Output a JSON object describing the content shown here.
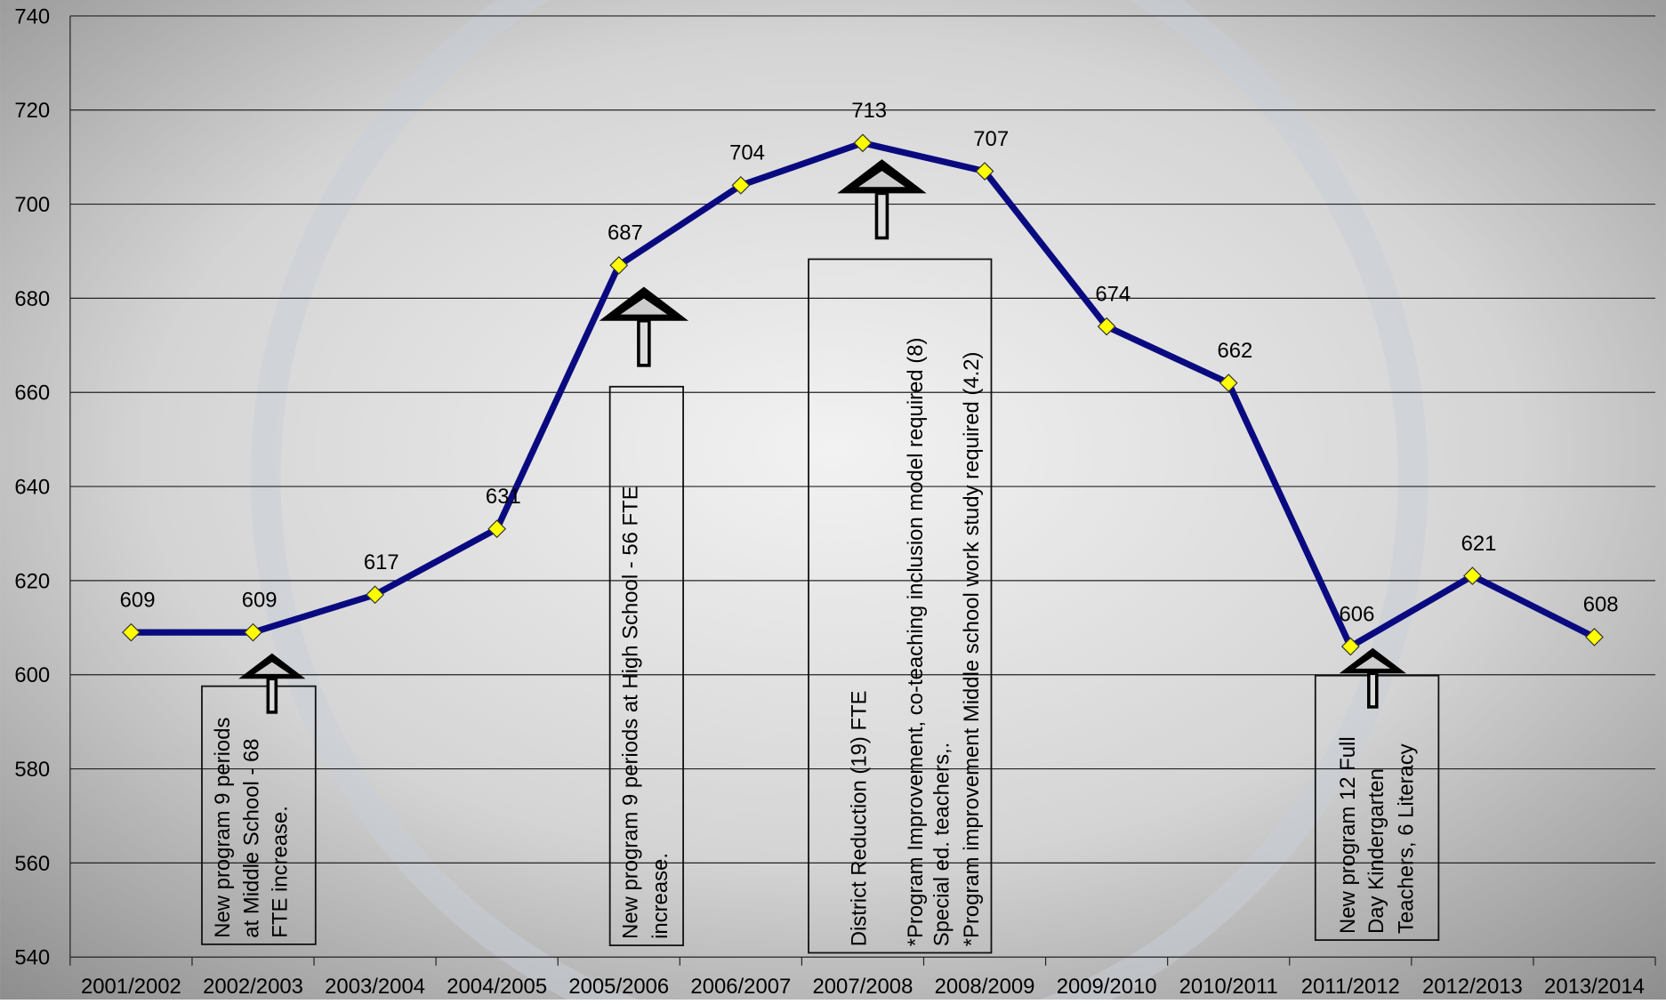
{
  "chart_data": {
    "type": "line",
    "categories": [
      "2001/2002",
      "2002/2003",
      "2003/2004",
      "2004/2005",
      "2005/2006",
      "2006/2007",
      "2007/2008",
      "2008/2009",
      "2009/2010",
      "2010/2011",
      "2011/2012",
      "2012/2013",
      "2013/2014"
    ],
    "series": [
      {
        "name": "FTE",
        "color": "#0a0a80",
        "values": [
          609,
          609,
          617,
          631,
          687,
          704,
          713,
          707,
          674,
          662,
          606,
          621,
          608
        ]
      }
    ],
    "ylim": [
      540,
      740
    ],
    "yticks": [
      540,
      560,
      580,
      600,
      620,
      640,
      660,
      680,
      700,
      720,
      740
    ],
    "grid": true,
    "annotations": [
      {
        "lines": [
          "New program 9 periods",
          "at Middle School - 68",
          "FTE increase."
        ]
      },
      {
        "lines": [
          "New program 9 periods at High School - 56 FTE",
          "increase."
        ]
      },
      {
        "lines": [
          "District Reduction (19) FTE",
          "*Program Improvement,  co-teaching inclusion model required (8)",
          "Special ed. teachers,.",
          "*Program improvement Middle school work study required (4.2)"
        ]
      },
      {
        "lines": [
          "New program 12 Full",
          "Day Kindergarten",
          "Teachers, 6 Literacy"
        ]
      }
    ]
  }
}
